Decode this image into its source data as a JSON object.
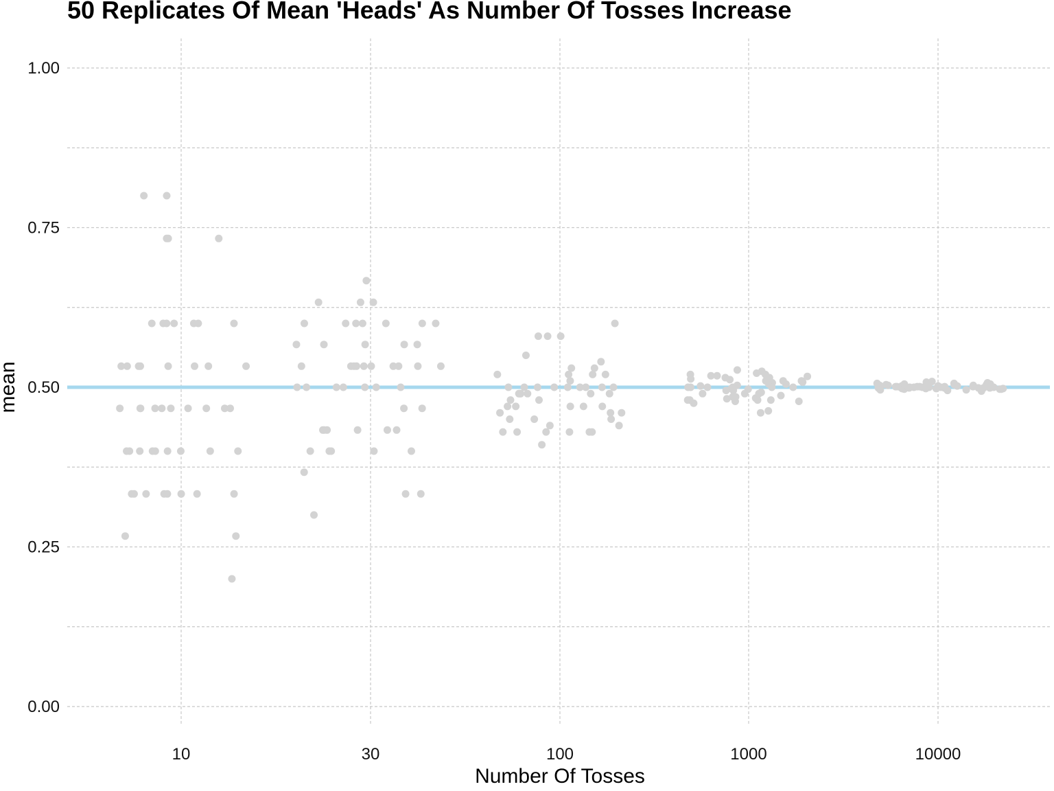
{
  "chart_data": {
    "type": "scatter",
    "title": "50 Replicates Of Mean 'Heads' As Number Of Tosses Increase",
    "xlabel": "Number Of Tosses",
    "ylabel": "mean",
    "x_scale": "categorical",
    "categories": [
      "10",
      "30",
      "100",
      "1000",
      "10000"
    ],
    "y_ticks": [
      "0.00",
      "0.25",
      "0.50",
      "0.75",
      "1.00"
    ],
    "ylim": [
      -0.04,
      1.04
    ],
    "grid": true,
    "reference_line": {
      "y": 0.5,
      "color": "#a6d8ee"
    },
    "point_color": "#d3d3d3",
    "series": [
      {
        "category": "10",
        "values": [
          0.2,
          0.267,
          0.267,
          0.333,
          0.333,
          0.333,
          0.333,
          0.333,
          0.333,
          0.333,
          0.333,
          0.4,
          0.4,
          0.4,
          0.4,
          0.4,
          0.4,
          0.4,
          0.4,
          0.467,
          0.467,
          0.467,
          0.467,
          0.467,
          0.467,
          0.467,
          0.467,
          0.467,
          0.533,
          0.533,
          0.533,
          0.533,
          0.533,
          0.533,
          0.533,
          0.6,
          0.6,
          0.6,
          0.6,
          0.6,
          0.6,
          0.6,
          0.733,
          0.733,
          0.733,
          0.8,
          0.8,
          0.533,
          0.467,
          0.4
        ]
      },
      {
        "category": "30",
        "values": [
          0.3,
          0.333,
          0.333,
          0.367,
          0.4,
          0.4,
          0.4,
          0.4,
          0.4,
          0.433,
          0.433,
          0.433,
          0.433,
          0.433,
          0.433,
          0.467,
          0.467,
          0.5,
          0.5,
          0.5,
          0.5,
          0.5,
          0.5,
          0.5,
          0.533,
          0.533,
          0.533,
          0.533,
          0.533,
          0.533,
          0.533,
          0.533,
          0.533,
          0.567,
          0.567,
          0.567,
          0.567,
          0.567,
          0.6,
          0.6,
          0.6,
          0.6,
          0.6,
          0.6,
          0.6,
          0.633,
          0.633,
          0.633,
          0.667,
          0.533
        ]
      },
      {
        "category": "100",
        "values": [
          0.41,
          0.43,
          0.43,
          0.43,
          0.43,
          0.43,
          0.43,
          0.44,
          0.44,
          0.45,
          0.45,
          0.45,
          0.46,
          0.46,
          0.46,
          0.47,
          0.47,
          0.47,
          0.47,
          0.48,
          0.48,
          0.49,
          0.49,
          0.49,
          0.49,
          0.49,
          0.5,
          0.5,
          0.5,
          0.5,
          0.5,
          0.5,
          0.5,
          0.51,
          0.52,
          0.52,
          0.52,
          0.52,
          0.53,
          0.53,
          0.54,
          0.55,
          0.58,
          0.58,
          0.58,
          0.6,
          0.5,
          0.47,
          0.49,
          0.5
        ]
      },
      {
        "category": "1000",
        "values": [
          0.46,
          0.463,
          0.475,
          0.478,
          0.478,
          0.48,
          0.48,
          0.48,
          0.482,
          0.483,
          0.485,
          0.485,
          0.487,
          0.49,
          0.49,
          0.492,
          0.495,
          0.495,
          0.497,
          0.498,
          0.5,
          0.5,
          0.5,
          0.5,
          0.502,
          0.503,
          0.503,
          0.505,
          0.505,
          0.507,
          0.508,
          0.51,
          0.51,
          0.512,
          0.513,
          0.515,
          0.515,
          0.517,
          0.518,
          0.518,
          0.52,
          0.52,
          0.522,
          0.525,
          0.527,
          0.5,
          0.49,
          0.51,
          0.5,
          0.48
        ]
      },
      {
        "category": "10000",
        "values": [
          0.494,
          0.495,
          0.496,
          0.496,
          0.497,
          0.497,
          0.497,
          0.498,
          0.498,
          0.498,
          0.498,
          0.499,
          0.499,
          0.499,
          0.499,
          0.499,
          0.5,
          0.5,
          0.5,
          0.5,
          0.5,
          0.5,
          0.5,
          0.501,
          0.501,
          0.501,
          0.501,
          0.501,
          0.502,
          0.502,
          0.502,
          0.502,
          0.503,
          0.503,
          0.503,
          0.503,
          0.504,
          0.504,
          0.504,
          0.505,
          0.505,
          0.506,
          0.506,
          0.507,
          0.508,
          0.509,
          0.5,
          0.501,
          0.499,
          0.5
        ]
      }
    ]
  }
}
